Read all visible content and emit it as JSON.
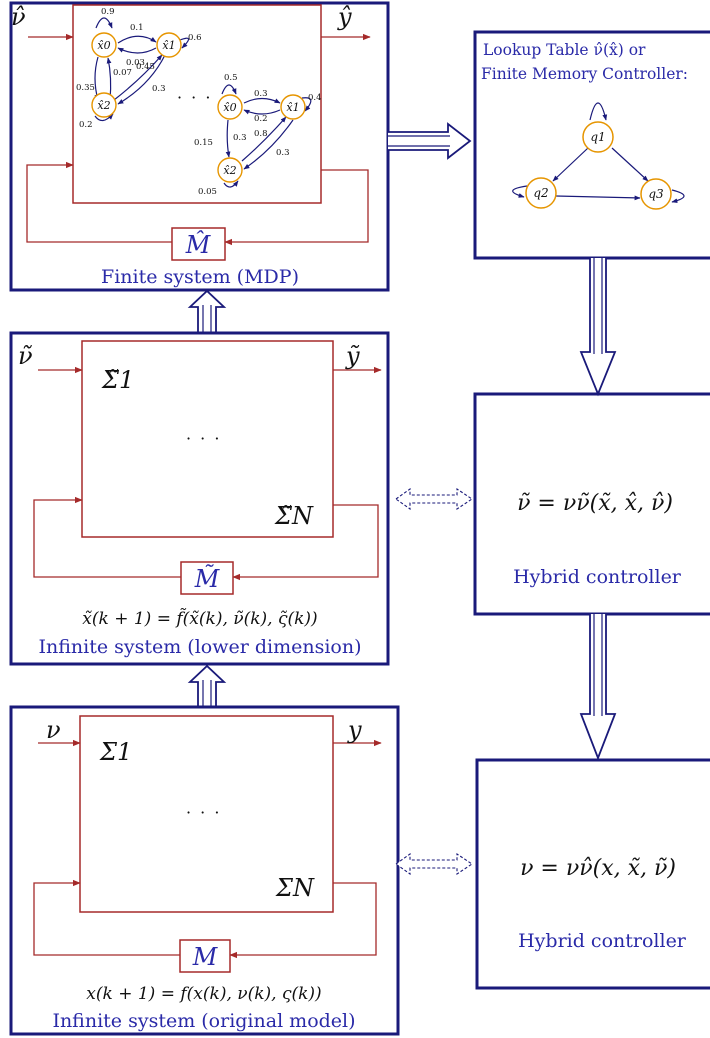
{
  "colors": {
    "outer_box": "#1a1a7a",
    "inner_box": "#a52a2a",
    "state_node": "#e69500",
    "blue_text": "#2a2aa8"
  },
  "finite_system": {
    "input": "ν̂",
    "output": "ŷ",
    "mem": "M̂",
    "caption": "Finite system (MDP)",
    "mdp_group1": {
      "states": [
        "x̂0",
        "x̂1",
        "x̂2"
      ],
      "probabilities": [
        "0.9",
        "0.1",
        "0.03",
        "0.6",
        "0.07",
        "0.45",
        "0.35",
        "0.3",
        "0.2"
      ]
    },
    "dots": "· · ·",
    "mdp_group2": {
      "states": [
        "x̂0",
        "x̂1",
        "x̂2"
      ],
      "probabilities": [
        "0.5",
        "0.3",
        "0.2",
        "0.4",
        "0.15",
        "0.3",
        "0.8",
        "0.3",
        "0.05"
      ]
    }
  },
  "lookup": {
    "title_line1": "Lookup Table ν̂(x̂) or",
    "title_line2": "Finite Memory Controller:",
    "nodes": [
      "q1",
      "q2",
      "q3"
    ]
  },
  "lower_system": {
    "input": "ν̃",
    "output": "ỹ",
    "sigma_first": "Σ̃1",
    "sigma_last": "Σ̃N",
    "dots": "· · ·",
    "mem": "M̃",
    "equation": "x̃(k + 1) = f̃(x̃(k), ν̃(k), ς̃(k))",
    "caption": "Infinite system (lower dimension)"
  },
  "hybrid_controller_1": {
    "law": "ν̃ = νν̃(x̃, x̂, ν̂)",
    "caption": "Hybrid controller"
  },
  "original_system": {
    "input": "ν",
    "output": "y",
    "sigma_first": "Σ1",
    "sigma_last": "ΣN",
    "dots": "· · ·",
    "mem": "M",
    "equation": "x(k + 1) = f(x(k), ν(k), ς(k))",
    "caption": "Infinite system (original model)"
  },
  "hybrid_controller_2": {
    "law": "ν = νν̂(x, x̃, ν̃)",
    "caption": "Hybrid controller"
  }
}
